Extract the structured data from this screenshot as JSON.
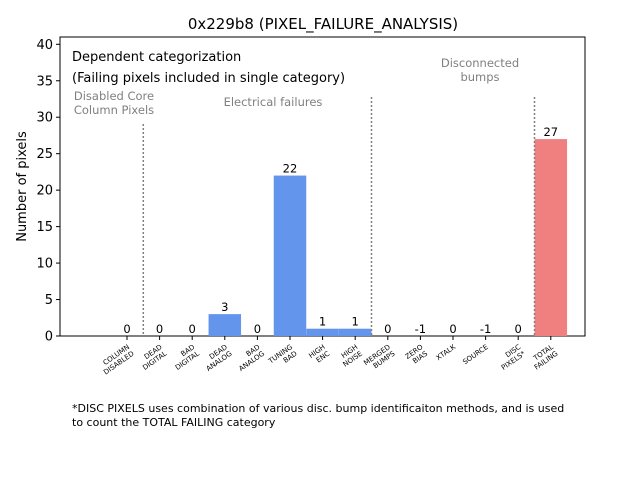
{
  "chart_data": {
    "type": "bar",
    "title": "0x229b8 (PIXEL_FAILURE_ANALYSIS)",
    "ylabel": "Number of pixels",
    "xlabel": "",
    "ylim": [
      0,
      41
    ],
    "yticks": [
      0,
      5,
      10,
      15,
      20,
      25,
      30,
      35,
      40
    ],
    "categories": [
      [
        "COLUMN",
        "DISABLED"
      ],
      [
        "DEAD",
        "DIGITAL"
      ],
      [
        "BAD",
        "DIGITAL"
      ],
      [
        "DEAD",
        "ANALOG"
      ],
      [
        "BAD",
        "ANALOG"
      ],
      [
        "TUNING",
        "BAD"
      ],
      [
        "HIGH",
        "ENC"
      ],
      [
        "HIGH",
        "NOISE"
      ],
      [
        "MERGED",
        "BUMPS"
      ],
      [
        "ZERO",
        "BIAS"
      ],
      [
        "XTALK"
      ],
      [
        "SOURCE"
      ],
      [
        "DISC",
        "PIXELS*"
      ],
      [
        "TOTAL",
        "FAILING"
      ]
    ],
    "values": [
      0,
      0,
      0,
      3,
      0,
      22,
      1,
      1,
      0,
      -1,
      0,
      -1,
      0,
      27
    ],
    "bar_colors": [
      "#6495ed",
      "#6495ed",
      "#6495ed",
      "#6495ed",
      "#6495ed",
      "#6495ed",
      "#6495ed",
      "#6495ed",
      "#6495ed",
      "#6495ed",
      "#6495ed",
      "#6495ed",
      "#6495ed",
      "#f08080"
    ],
    "separators_after_category_index": [
      0,
      7,
      12
    ],
    "annotations": {
      "box_line1": "Dependent categorization",
      "box_line2": "(Failing pixels included in single category)",
      "section_disabled": [
        "Disabled Core",
        "Column Pixels"
      ],
      "section_electrical": [
        "Electrical failures"
      ],
      "section_disconnected": [
        "Disconnected",
        "bumps"
      ]
    },
    "colors": {
      "section_label": "#808080",
      "separator": "#808080",
      "axis": "#000000"
    }
  },
  "footnote": {
    "line1": "*DISC PIXELS uses combination of various disc. bump identificaiton methods, and is used",
    "line2": "to count the TOTAL FAILING category"
  }
}
